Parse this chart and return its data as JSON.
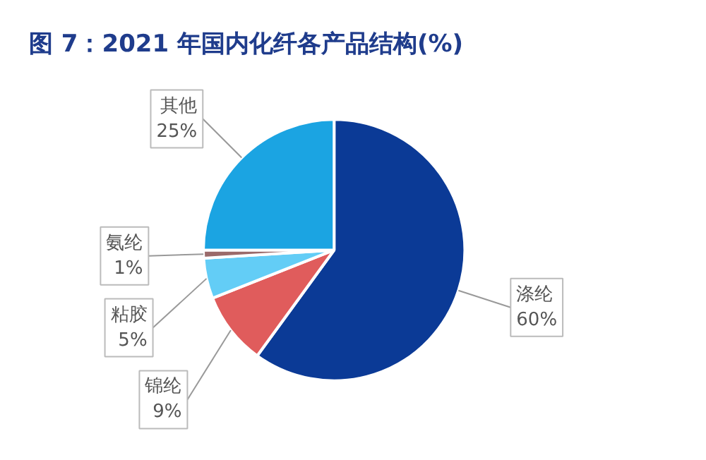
{
  "chart_data": {
    "type": "pie",
    "title": "图 7：2021 年国内化纤各产品结构(%)",
    "categories": [
      "涤纶",
      "锦纶",
      "粘胶",
      "氨纶",
      "其他"
    ],
    "values": [
      60,
      9,
      5,
      1,
      25
    ],
    "value_labels": [
      "60%",
      "9%",
      "5%",
      "1%",
      "25%"
    ],
    "colors": [
      "#0b3a96",
      "#e05c5c",
      "#63cdf6",
      "#9a6a6a",
      "#1ba4e2"
    ]
  }
}
